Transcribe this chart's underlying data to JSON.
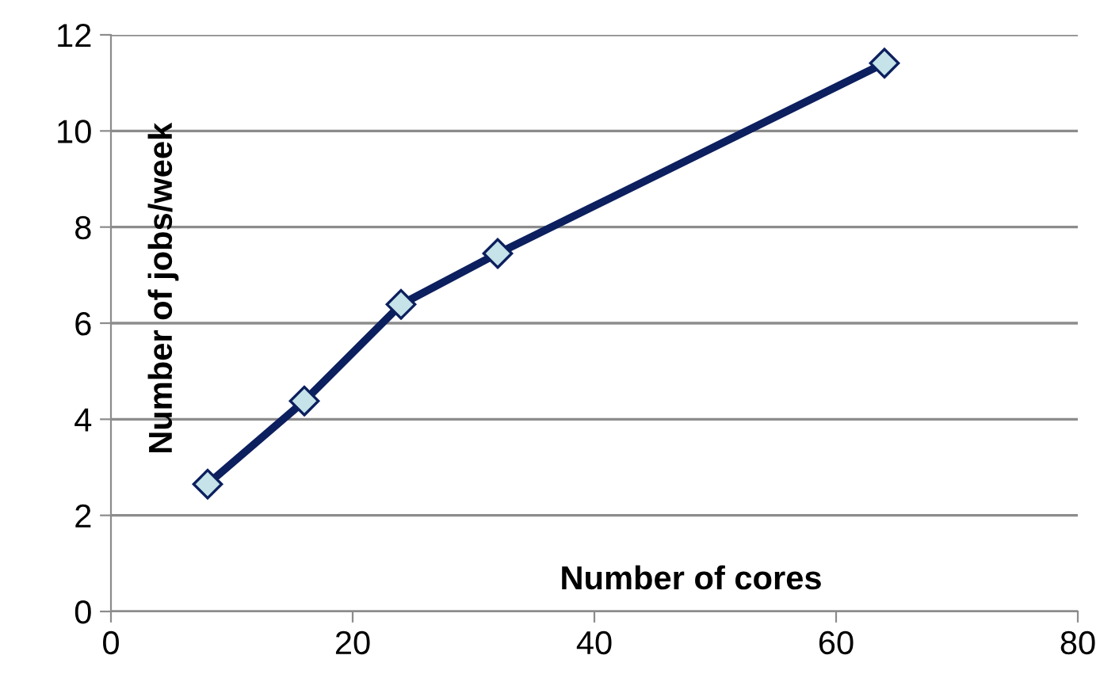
{
  "chart_data": {
    "type": "line",
    "xlabel": "Number of cores",
    "ylabel": "Number of jobs/week",
    "x": [
      8,
      16,
      24,
      32,
      64
    ],
    "series": [
      {
        "color": "#0c1f5e",
        "values": [
          2.65,
          4.38,
          6.39,
          7.45,
          11.41
        ]
      }
    ],
    "marker": "diamond",
    "line_style": "solid",
    "xlim": [
      0,
      80
    ],
    "xticks": [
      0,
      20,
      40,
      60,
      80
    ],
    "ylim": [
      0,
      12
    ],
    "yticks": [
      0,
      2,
      4,
      6,
      8,
      10,
      12
    ],
    "grid": "y"
  }
}
